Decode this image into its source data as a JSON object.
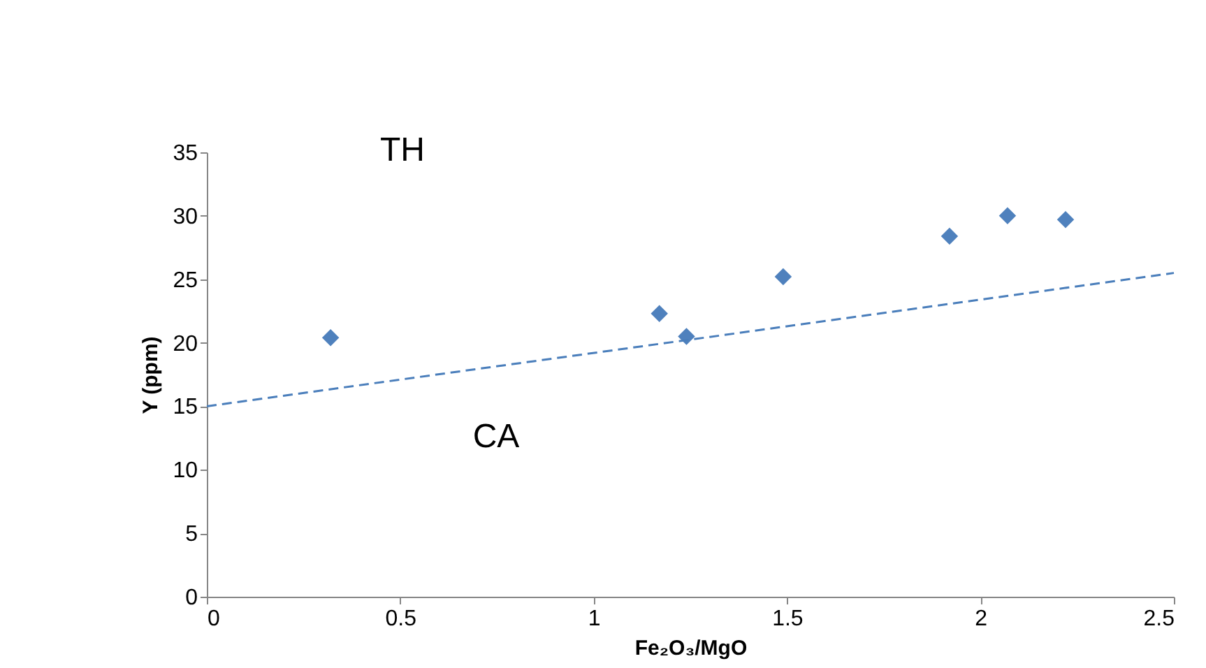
{
  "chart_data": {
    "type": "scatter",
    "xlabel": "Fe₂O₃/MgO",
    "ylabel": "Y (ppm)",
    "xlim": [
      0,
      2.5
    ],
    "ylim": [
      0,
      35
    ],
    "xticks": [
      0,
      0.5,
      1,
      1.5,
      2,
      2.5
    ],
    "yticks": [
      0,
      5,
      10,
      15,
      20,
      25,
      30,
      35
    ],
    "grid": false,
    "annotations": [
      "TH",
      "CA"
    ],
    "series": [
      {
        "color": "#4f81bd",
        "marker": "diamond",
        "x": [
          0.32,
          1.17,
          1.24,
          1.49,
          1.92,
          2.07,
          2.22
        ],
        "values": [
          20.4,
          22.3,
          20.5,
          25.2,
          28.4,
          30.0,
          29.7
        ]
      },
      {
        "type": "line",
        "color": "#4a7ebb",
        "line_style": "dashed",
        "marker": "none",
        "x": [
          0,
          2.5
        ],
        "values": [
          15,
          25.5
        ]
      }
    ]
  }
}
